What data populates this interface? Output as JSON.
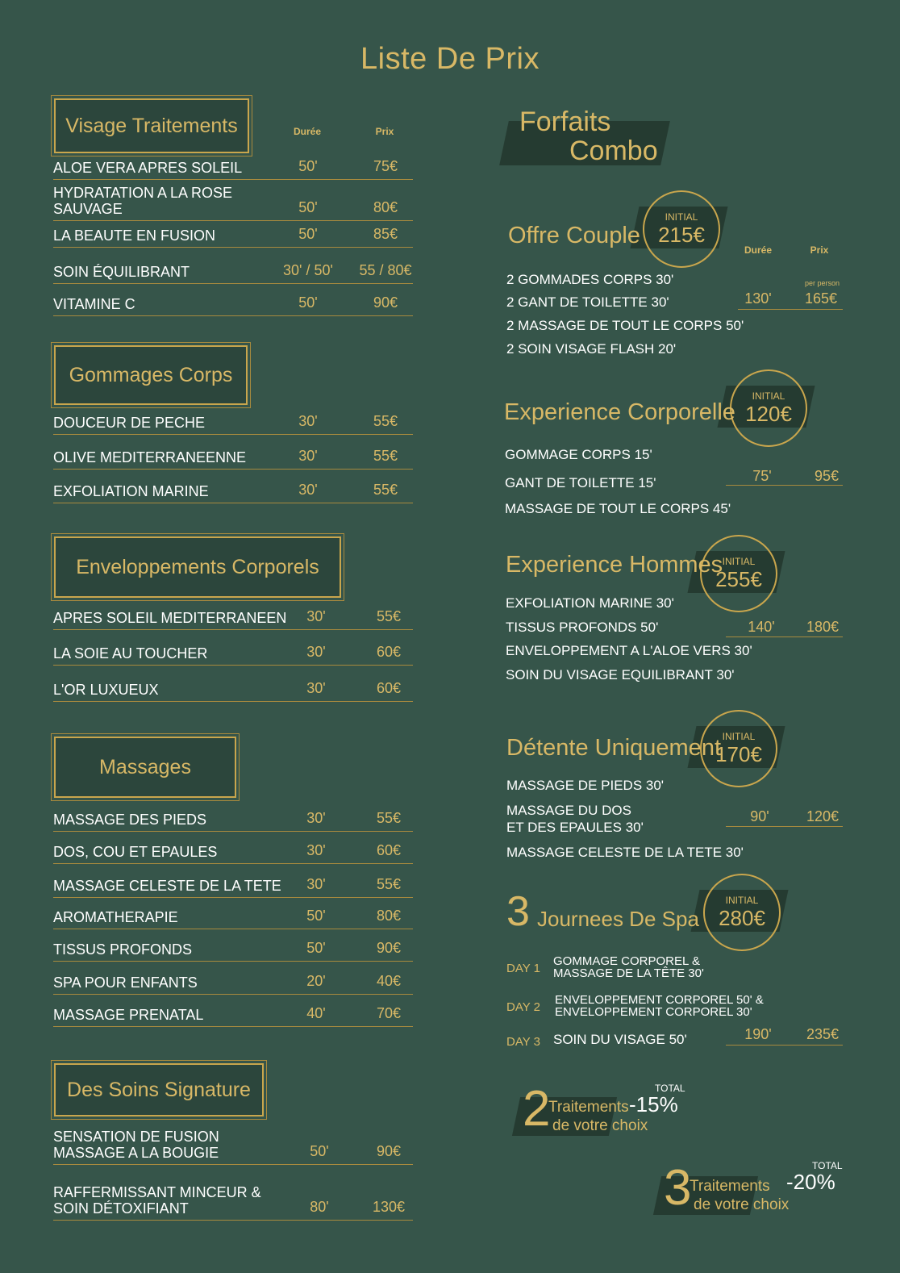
{
  "title": "Liste De Prix",
  "column_headers": {
    "duration": "Durée",
    "price": "Prix"
  },
  "sections": [
    {
      "title": "Visage Traitements",
      "rows": [
        {
          "name": "ALOE VERA APRES SOLEIL",
          "duration": "50'",
          "price": "75€"
        },
        {
          "name": "HYDRATATION A LA ROSE SAUVAGE",
          "duration": "50'",
          "price": "80€"
        },
        {
          "name": "LA BEAUTE EN FUSION",
          "duration": "50'",
          "price": "85€"
        },
        {
          "name": "SOIN ÉQUILIBRANT",
          "duration": "30' / 50'",
          "price": "55 / 80€"
        },
        {
          "name": "VITAMINE C",
          "duration": "50'",
          "price": "90€"
        }
      ]
    },
    {
      "title": "Gommages Corps",
      "rows": [
        {
          "name": "DOUCEUR DE PECHE",
          "duration": "30'",
          "price": "55€"
        },
        {
          "name": "OLIVE MEDITERRANEENNE",
          "duration": "30'",
          "price": "55€"
        },
        {
          "name": "EXFOLIATION MARINE",
          "duration": "30'",
          "price": "55€"
        }
      ]
    },
    {
      "title": "Enveloppements Corporels",
      "rows": [
        {
          "name": "APRES SOLEIL MEDITERRANEEN",
          "duration": "30'",
          "price": "55€"
        },
        {
          "name": "LA SOIE AU TOUCHER",
          "duration": "30'",
          "price": "60€"
        },
        {
          "name": "L'OR LUXUEUX",
          "duration": "30'",
          "price": "60€"
        }
      ]
    },
    {
      "title": "Massages",
      "rows": [
        {
          "name": "MASSAGE DES PIEDS",
          "duration": "30'",
          "price": "55€"
        },
        {
          "name": "DOS, COU ET EPAULES",
          "duration": "30'",
          "price": "60€"
        },
        {
          "name": "MASSAGE CELESTE DE LA TETE",
          "duration": "30'",
          "price": "55€"
        },
        {
          "name": "AROMATHERAPIE",
          "duration": "50'",
          "price": "80€"
        },
        {
          "name": "TISSUS PROFONDS",
          "duration": "50'",
          "price": "90€"
        },
        {
          "name": "SPA POUR ENFANTS",
          "duration": "20'",
          "price": "40€"
        },
        {
          "name": "MASSAGE PRENATAL",
          "duration": "40'",
          "price": "70€"
        }
      ]
    },
    {
      "title": "Des Soins Signature",
      "rows": [
        {
          "name": "SENSATION DE FUSION MASSAGE A LA BOUGIE",
          "duration": "50'",
          "price": "90€"
        },
        {
          "name": "RAFFERMISSANT MINCEUR & SOIN DÉTOXIFIANT",
          "duration": "80'",
          "price": "130€"
        }
      ]
    }
  ],
  "combo": {
    "title_line1": "Forfaits",
    "title_line2": "Combo",
    "packages": [
      {
        "title": "Offre Couple",
        "badge_label": "INITIAL",
        "badge_price": "215€",
        "items": [
          "2 GOMMADES CORPS 30'",
          "2 GANT DE TOILETTE 30'",
          "2 MASSAGE DE TOUT LE CORPS  50'",
          "2 SOIN VISAGE FLASH   20'"
        ],
        "duration": "130'",
        "price": "165€",
        "price_note": "per person"
      },
      {
        "title": "Experience Corporelle",
        "badge_label": "INITIAL",
        "badge_price": "120€",
        "items": [
          "GOMMAGE CORPS 15'",
          "GANT DE TOILETTE 15'",
          "MASSAGE DE TOUT LE CORPS 45'"
        ],
        "duration": "75'",
        "price": "95€"
      },
      {
        "title": "Experience Hommes",
        "badge_label": "INITIAL",
        "badge_price": "255€",
        "items": [
          "EXFOLIATION MARINE 30'",
          "TISSUS PROFONDS 50'",
          "ENVELOPPEMENT A L'ALOE VERS 30'",
          "SOIN DU VISAGE EQUILIBRANT 30'"
        ],
        "duration": "140'",
        "price": "180€"
      },
      {
        "title": "Détente Uniquement",
        "badge_label": "INITIAL",
        "badge_price": "170€",
        "items": [
          "MASSAGE DE PIEDS 30'",
          "MASSAGE DU DOS",
          "ET DES EPAULES  30'",
          "MASSAGE CELESTE DE LA TETE 30'"
        ],
        "duration": "90'",
        "price": "120€"
      },
      {
        "title_number": "3",
        "title": "Journees De Spa",
        "badge_label": "INITIAL",
        "badge_price": "280€",
        "days": [
          {
            "label": "DAY 1",
            "lines": [
              "GOMMAGE CORPOREL &",
              "MASSAGE DE LA TÊTE  30'"
            ]
          },
          {
            "label": "DAY 2",
            "lines": [
              "ENVELOPPEMENT CORPOREL 50' &",
              "ENVELOPPEMENT CORPOREL 30'"
            ]
          },
          {
            "label": "DAY 3",
            "lines": [
              "SOIN DU VISAGE 50'"
            ]
          }
        ],
        "duration": "190'",
        "price": "235€"
      }
    ]
  },
  "discounts": [
    {
      "number": "2",
      "line1": "Traitements",
      "line2": "de votre choix",
      "total_label": "TOTAL",
      "value": "-15%"
    },
    {
      "number": "3",
      "line1": "Traitements",
      "line2": "de votre choix",
      "total_label": "TOTAL",
      "value": "-20%"
    }
  ],
  "colors": {
    "background": "#36554a",
    "gold": "#d8b866",
    "text": "#ffffff"
  }
}
